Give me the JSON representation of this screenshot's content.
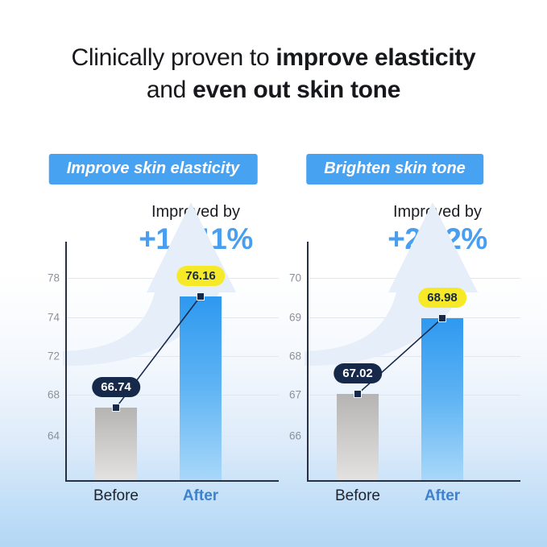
{
  "headline": {
    "prefix": "Clinically proven to",
    "bold1": "improve elasticity",
    "mid": "and",
    "bold2": "even out skin tone"
  },
  "colors": {
    "badge_blue": "#48a2f2",
    "stat_blue": "#4a9ef0",
    "bar_after_top": "#2e99f0",
    "bar_after_bottom": "#a8d8f9",
    "bar_before_top": "#b6b4b2",
    "bar_before_bottom": "#e4e2e0",
    "pill_navy": "#16294a",
    "pill_yellow": "#f6e927",
    "after_label_blue": "#3e82cc",
    "tick_gray": "#8c9199",
    "arrow_watermark": "#e6eef9",
    "background_bottom": "#b3d7f4"
  },
  "chart_data": [
    {
      "type": "bar",
      "badge": "Improve skin elasticity",
      "improved_by_label": "Improved by",
      "improvement": "+14.11%",
      "categories": [
        "Before",
        "After"
      ],
      "values": [
        66.74,
        76.16
      ],
      "value_labels": [
        "66.74",
        "76.16"
      ],
      "yticks": [
        78,
        74,
        72,
        68,
        64
      ],
      "xlabel": "",
      "ylabel": "",
      "grid": true,
      "legend": false
    },
    {
      "type": "bar",
      "badge": "Brighten skin tone",
      "improved_by_label": "Improved by",
      "improvement": "+2.92%",
      "categories": [
        "Before",
        "After"
      ],
      "values": [
        67.02,
        68.98
      ],
      "value_labels": [
        "67.02",
        "68.98"
      ],
      "yticks": [
        70,
        69,
        68,
        67,
        66
      ],
      "xlabel": "",
      "ylabel": "",
      "grid": true,
      "legend": false
    }
  ]
}
